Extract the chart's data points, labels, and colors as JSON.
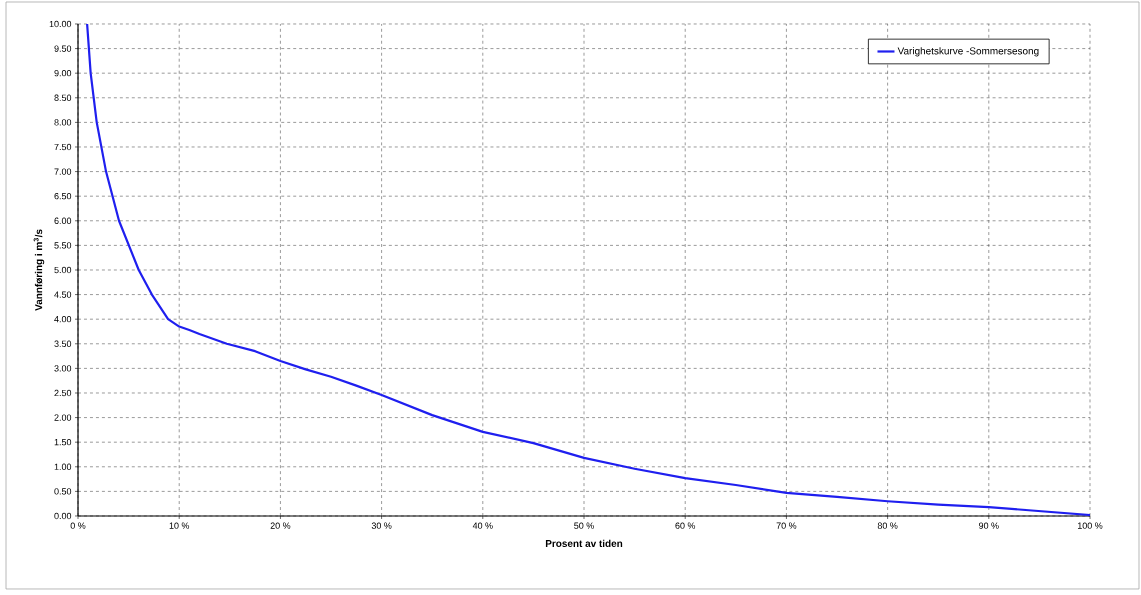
{
  "chart_data": {
    "type": "line",
    "xlabel": "Prosent av tiden",
    "ylabel": "Vannføring i m$^{3}$/s",
    "xlim": [
      0,
      100
    ],
    "ylim": [
      0,
      10
    ],
    "xticks": [
      {
        "value": 0,
        "label": "0 %"
      },
      {
        "value": 10,
        "label": "10 %"
      },
      {
        "value": 20,
        "label": "20 %"
      },
      {
        "value": 30,
        "label": "30 %"
      },
      {
        "value": 40,
        "label": "40 %"
      },
      {
        "value": 50,
        "label": "50 %"
      },
      {
        "value": 60,
        "label": "60 %"
      },
      {
        "value": 70,
        "label": "70 %"
      },
      {
        "value": 80,
        "label": "80 %"
      },
      {
        "value": 90,
        "label": "90 %"
      },
      {
        "value": 100,
        "label": "100 %"
      }
    ],
    "yticks": [
      {
        "value": 0,
        "label": "0.00"
      },
      {
        "value": 0.5,
        "label": "0.50"
      },
      {
        "value": 1,
        "label": "1.00"
      },
      {
        "value": 1.5,
        "label": "1.50"
      },
      {
        "value": 2,
        "label": "2.00"
      },
      {
        "value": 2.5,
        "label": "2.50"
      },
      {
        "value": 3,
        "label": "3.00"
      },
      {
        "value": 3.5,
        "label": "3.50"
      },
      {
        "value": 4,
        "label": "4.00"
      },
      {
        "value": 4.5,
        "label": "4.50"
      },
      {
        "value": 5,
        "label": "5.00"
      },
      {
        "value": 5.5,
        "label": "5.50"
      },
      {
        "value": 6,
        "label": "6.00"
      },
      {
        "value": 6.5,
        "label": "6.50"
      },
      {
        "value": 7,
        "label": "7.00"
      },
      {
        "value": 7.5,
        "label": "7.50"
      },
      {
        "value": 8,
        "label": "8.00"
      },
      {
        "value": 8.5,
        "label": "8.50"
      },
      {
        "value": 9,
        "label": "9.00"
      },
      {
        "value": 9.5,
        "label": "9.50"
      },
      {
        "value": 10,
        "label": "10.00"
      }
    ],
    "grid": true,
    "legend": "top right",
    "marker": "none",
    "line_style": "solid",
    "series": [
      {
        "name": "Varighetskurve -Sommersesong",
        "color": "#1f1fef",
        "x": [
          0.9,
          1.25,
          1.85,
          2.77,
          4.05,
          6.0,
          7.3,
          8.9,
          10,
          11,
          12,
          14.7,
          17.5,
          20,
          22.5,
          25,
          27.5,
          30,
          35,
          40,
          45,
          50,
          55,
          60,
          65,
          70,
          75,
          80,
          85,
          90,
          95,
          100
        ],
        "values": [
          10,
          9,
          8,
          7,
          6,
          5,
          4.5,
          4,
          3.85,
          3.78,
          3.7,
          3.5,
          3.35,
          3.15,
          2.98,
          2.83,
          2.65,
          2.46,
          2.05,
          1.71,
          1.48,
          1.18,
          0.96,
          0.77,
          0.63,
          0.47,
          0.39,
          0.3,
          0.23,
          0.18,
          0.1,
          0.02
        ]
      }
    ]
  }
}
